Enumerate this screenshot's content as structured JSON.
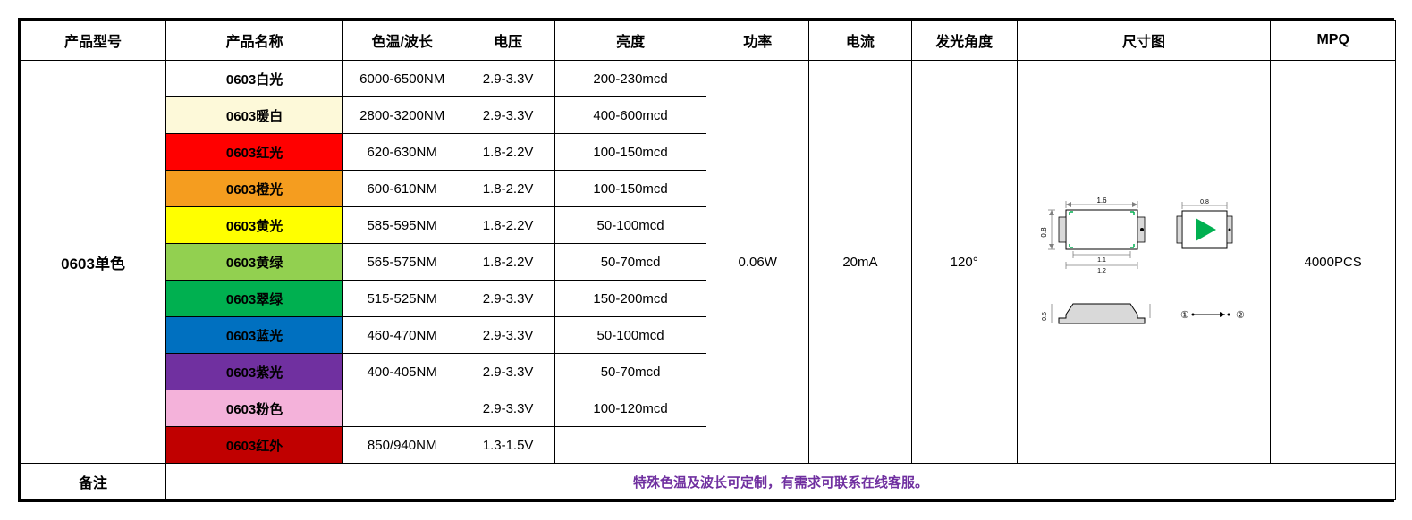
{
  "headers": {
    "model": "产品型号",
    "name": "产品名称",
    "wave": "色温/波长",
    "volt": "电压",
    "bright": "亮度",
    "power": "功率",
    "current": "电流",
    "angle": "发光角度",
    "size": "尺寸图",
    "mpq": "MPQ"
  },
  "model_value": "0603单色",
  "power_value": "0.06W",
  "current_value": "20mA",
  "angle_value": "120°",
  "mpq_value": "4000PCS",
  "rows": [
    {
      "name": "0603白光",
      "bg": "#ffffff",
      "fg": "#000000",
      "wave": "6000-6500NM",
      "volt": "2.9-3.3V",
      "bright": "200-230mcd"
    },
    {
      "name": "0603暖白",
      "bg": "#fdf9d9",
      "fg": "#000000",
      "wave": "2800-3200NM",
      "volt": "2.9-3.3V",
      "bright": "400-600mcd"
    },
    {
      "name": "0603红光",
      "bg": "#ff0000",
      "fg": "#000000",
      "wave": "620-630NM",
      "volt": "1.8-2.2V",
      "bright": "100-150mcd"
    },
    {
      "name": "0603橙光",
      "bg": "#f59d1f",
      "fg": "#000000",
      "wave": "600-610NM",
      "volt": "1.8-2.2V",
      "bright": "100-150mcd"
    },
    {
      "name": "0603黄光",
      "bg": "#ffff00",
      "fg": "#000000",
      "wave": "585-595NM",
      "volt": "1.8-2.2V",
      "bright": "50-100mcd"
    },
    {
      "name": "0603黄绿",
      "bg": "#92d050",
      "fg": "#000000",
      "wave": "565-575NM",
      "volt": "1.8-2.2V",
      "bright": "50-70mcd"
    },
    {
      "name": "0603翠绿",
      "bg": "#00b050",
      "fg": "#000000",
      "wave": "515-525NM",
      "volt": "2.9-3.3V",
      "bright": "150-200mcd"
    },
    {
      "name": "0603蓝光",
      "bg": "#0070c0",
      "fg": "#000000",
      "wave": "460-470NM",
      "volt": "2.9-3.3V",
      "bright": "50-100mcd"
    },
    {
      "name": "0603紫光",
      "bg": "#7030a0",
      "fg": "#000000",
      "wave": "400-405NM",
      "volt": "2.9-3.3V",
      "bright": "50-70mcd"
    },
    {
      "name": "0603粉色",
      "bg": "#f4b2da",
      "fg": "#000000",
      "wave": "",
      "volt": "2.9-3.3V",
      "bright": "100-120mcd"
    },
    {
      "name": "0603红外",
      "bg": "#c00000",
      "fg": "#000000",
      "wave": "850/940NM",
      "volt": "1.3-1.5V",
      "bright": ""
    }
  ],
  "footer": {
    "label": "备注",
    "note": "特殊色温及波长可定制，有需求可联系在线客服。"
  },
  "diagram": {
    "top_width_label": "1.6",
    "inner_width_label": "1.1",
    "inner_width_label2": "1.2",
    "height_label": "0.8",
    "side_top_label": "0.8",
    "side_height_label": "0.6",
    "led_color": "#00b050",
    "body_fill": "#d9d9d9",
    "line_color": "#7f7f7f",
    "pin1": "①",
    "pin2": "②"
  }
}
